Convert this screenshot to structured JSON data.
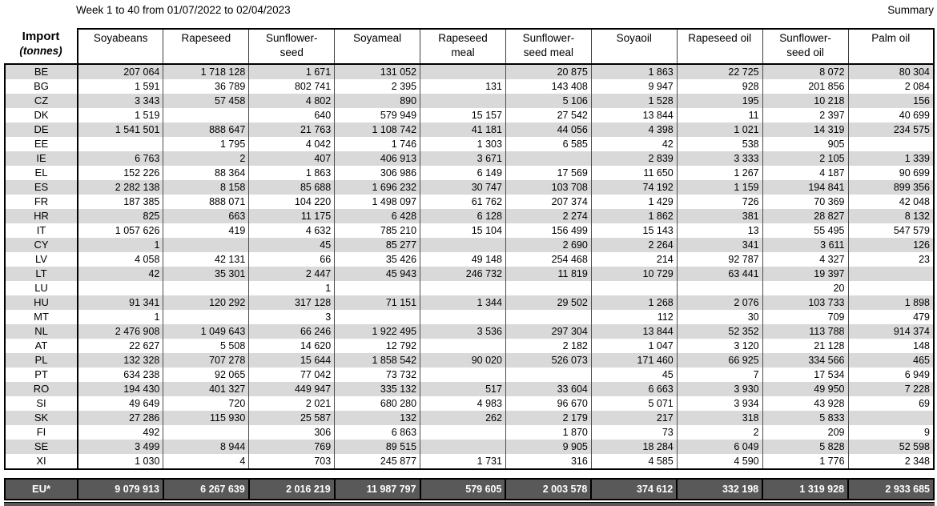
{
  "page": {
    "title": "Week 1 to 40 from 01/07/2022 to 02/04/2023",
    "summary_label": "Summary"
  },
  "colors": {
    "stripe_gray": "#d9d9d9",
    "total_row_bg": "#595959",
    "total_row_text": "#ffffff",
    "border_black": "#000000"
  },
  "table": {
    "corner": {
      "line1": "Import",
      "line2": "(tonnes)"
    },
    "columns": [
      "Soyabeans",
      "Rapeseed",
      "Sunflower-\nseed",
      "Soyameal",
      "Rapeseed\nmeal",
      "Sunflower-\nseed meal",
      "Soyaoil",
      "Rapeseed oil",
      "Sunflower-\nseed oil",
      "Palm oil"
    ],
    "rows": [
      {
        "code": "BE",
        "values": [
          "207 064",
          "1 718 128",
          "1 671",
          "131 052",
          "",
          "20 875",
          "1 863",
          "22 725",
          "8 072",
          "80 304"
        ]
      },
      {
        "code": "BG",
        "values": [
          "1 591",
          "36 789",
          "802 741",
          "2 395",
          "131",
          "143 408",
          "9 947",
          "928",
          "201 856",
          "2 084"
        ]
      },
      {
        "code": "CZ",
        "values": [
          "3 343",
          "57 458",
          "4 802",
          "890",
          "",
          "5 106",
          "1 528",
          "195",
          "10 218",
          "156"
        ]
      },
      {
        "code": "DK",
        "values": [
          "1 519",
          "",
          "640",
          "579 949",
          "15 157",
          "27 542",
          "13 844",
          "11",
          "2 397",
          "40 699"
        ]
      },
      {
        "code": "DE",
        "values": [
          "1 541 501",
          "888 647",
          "21 763",
          "1 108 742",
          "41 181",
          "44 056",
          "4 398",
          "1 021",
          "14 319",
          "234 575"
        ]
      },
      {
        "code": "EE",
        "values": [
          "",
          "1 795",
          "4 042",
          "1 746",
          "1 303",
          "6 585",
          "42",
          "538",
          "905",
          ""
        ]
      },
      {
        "code": "IE",
        "values": [
          "6 763",
          "2",
          "407",
          "406 913",
          "3 671",
          "",
          "2 839",
          "3 333",
          "2 105",
          "1 339"
        ]
      },
      {
        "code": "EL",
        "values": [
          "152 226",
          "88 364",
          "1 863",
          "306 986",
          "6 149",
          "17 569",
          "11 650",
          "1 267",
          "4 187",
          "90 699"
        ]
      },
      {
        "code": "ES",
        "values": [
          "2 282 138",
          "8 158",
          "85 688",
          "1 696 232",
          "30 747",
          "103 708",
          "74 192",
          "1 159",
          "194 841",
          "899 356"
        ]
      },
      {
        "code": "FR",
        "values": [
          "187 385",
          "888 071",
          "104 220",
          "1 498 097",
          "61 762",
          "207 374",
          "1 429",
          "726",
          "70 369",
          "42 048"
        ]
      },
      {
        "code": "HR",
        "values": [
          "825",
          "663",
          "11 175",
          "6 428",
          "6 128",
          "2 274",
          "1 862",
          "381",
          "28 827",
          "8 132"
        ]
      },
      {
        "code": "IT",
        "values": [
          "1 057 626",
          "419",
          "4 632",
          "785 210",
          "15 104",
          "156 499",
          "15 143",
          "13",
          "55 495",
          "547 579"
        ]
      },
      {
        "code": "CY",
        "values": [
          "1",
          "",
          "45",
          "85 277",
          "",
          "2 690",
          "2 264",
          "341",
          "3 611",
          "126"
        ]
      },
      {
        "code": "LV",
        "values": [
          "4 058",
          "42 131",
          "66",
          "35 426",
          "49 148",
          "254 468",
          "214",
          "92 787",
          "4 327",
          "23"
        ]
      },
      {
        "code": "LT",
        "values": [
          "42",
          "35 301",
          "2 447",
          "45 943",
          "246 732",
          "11 819",
          "10 729",
          "63 441",
          "19 397",
          ""
        ]
      },
      {
        "code": "LU",
        "values": [
          "",
          "",
          "1",
          "",
          "",
          "",
          "",
          "",
          "20",
          ""
        ]
      },
      {
        "code": "HU",
        "values": [
          "91 341",
          "120 292",
          "317 128",
          "71 151",
          "1 344",
          "29 502",
          "1 268",
          "2 076",
          "103 733",
          "1 898"
        ]
      },
      {
        "code": "MT",
        "values": [
          "1",
          "",
          "3",
          "",
          "",
          "",
          "112",
          "30",
          "709",
          "479"
        ]
      },
      {
        "code": "NL",
        "values": [
          "2 476 908",
          "1 049 643",
          "66 246",
          "1 922 495",
          "3 536",
          "297 304",
          "13 844",
          "52 352",
          "113 788",
          "914 374"
        ]
      },
      {
        "code": "AT",
        "values": [
          "22 627",
          "5 508",
          "14 620",
          "12 792",
          "",
          "2 182",
          "1 047",
          "3 120",
          "21 128",
          "148"
        ]
      },
      {
        "code": "PL",
        "values": [
          "132 328",
          "707 278",
          "15 644",
          "1 858 542",
          "90 020",
          "526 073",
          "171 460",
          "66 925",
          "334 566",
          "465"
        ]
      },
      {
        "code": "PT",
        "values": [
          "634 238",
          "92 065",
          "77 042",
          "73 732",
          "",
          "",
          "45",
          "7",
          "17 534",
          "6 949"
        ]
      },
      {
        "code": "RO",
        "values": [
          "194 430",
          "401 327",
          "449 947",
          "335 132",
          "517",
          "33 604",
          "6 663",
          "3 930",
          "49 950",
          "7 228"
        ]
      },
      {
        "code": "SI",
        "values": [
          "49 649",
          "720",
          "2 021",
          "680 280",
          "4 983",
          "96 670",
          "5 071",
          "3 934",
          "43 928",
          "69"
        ]
      },
      {
        "code": "SK",
        "values": [
          "27 286",
          "115 930",
          "25 587",
          "132",
          "262",
          "2 179",
          "217",
          "318",
          "5 833",
          ""
        ]
      },
      {
        "code": "FI",
        "values": [
          "492",
          "",
          "306",
          "6 863",
          "",
          "1 870",
          "73",
          "2",
          "209",
          "9"
        ]
      },
      {
        "code": "SE",
        "values": [
          "3 499",
          "8 944",
          "769",
          "89 515",
          "",
          "9 905",
          "18 284",
          "6 049",
          "5 828",
          "52 598"
        ]
      },
      {
        "code": "XI",
        "values": [
          "1 030",
          "4",
          "703",
          "245 877",
          "1 731",
          "316",
          "4 585",
          "4 590",
          "1 776",
          "2 348"
        ]
      }
    ],
    "total": {
      "code": "EU*",
      "values": [
        "9 079 913",
        "6 267 639",
        "2 016 219",
        "11 987 797",
        "579 605",
        "2 003 578",
        "374 612",
        "332 198",
        "1 319 928",
        "2 933 685"
      ]
    }
  }
}
